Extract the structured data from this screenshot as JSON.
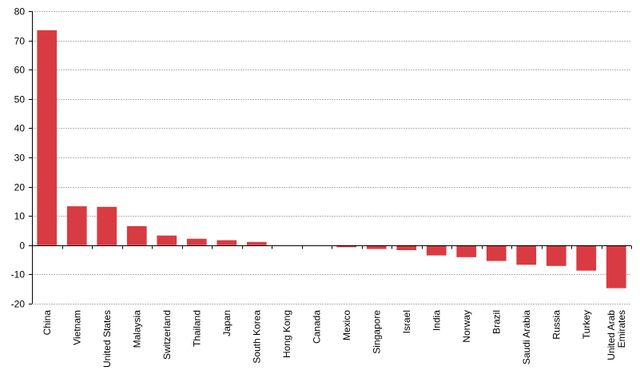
{
  "chart_data": {
    "type": "bar",
    "categories": [
      [
        "China"
      ],
      [
        "Vietnam"
      ],
      [
        "United States"
      ],
      [
        "Malaysia"
      ],
      [
        "Switzerland"
      ],
      [
        "Thailand"
      ],
      [
        "Japan"
      ],
      [
        "South Korea"
      ],
      [
        "Hong Kong"
      ],
      [
        "Canada"
      ],
      [
        "Mexico"
      ],
      [
        "Singapore"
      ],
      [
        "Israel"
      ],
      [
        "India"
      ],
      [
        "Norway"
      ],
      [
        "Brazil"
      ],
      [
        "Saudi Arabia"
      ],
      [
        "Russia"
      ],
      [
        "Turkey"
      ],
      [
        "United Arab",
        "Emirates"
      ]
    ],
    "values": [
      73.5,
      13.3,
      13.1,
      6.5,
      3.3,
      2.2,
      1.7,
      1.1,
      0,
      0,
      -0.7,
      -1.3,
      -1.7,
      -3.5,
      -4.1,
      -5.4,
      -6.7,
      -7.1,
      -8.7,
      -14.7
    ],
    "ylim": [
      -20,
      80
    ],
    "yticks": [
      80,
      70,
      60,
      50,
      40,
      30,
      20,
      10,
      0,
      -10,
      -20
    ],
    "grid": true,
    "bar_color": "#d83b41",
    "grid_color": "#b3b3b3",
    "axis_color": "#000000"
  }
}
